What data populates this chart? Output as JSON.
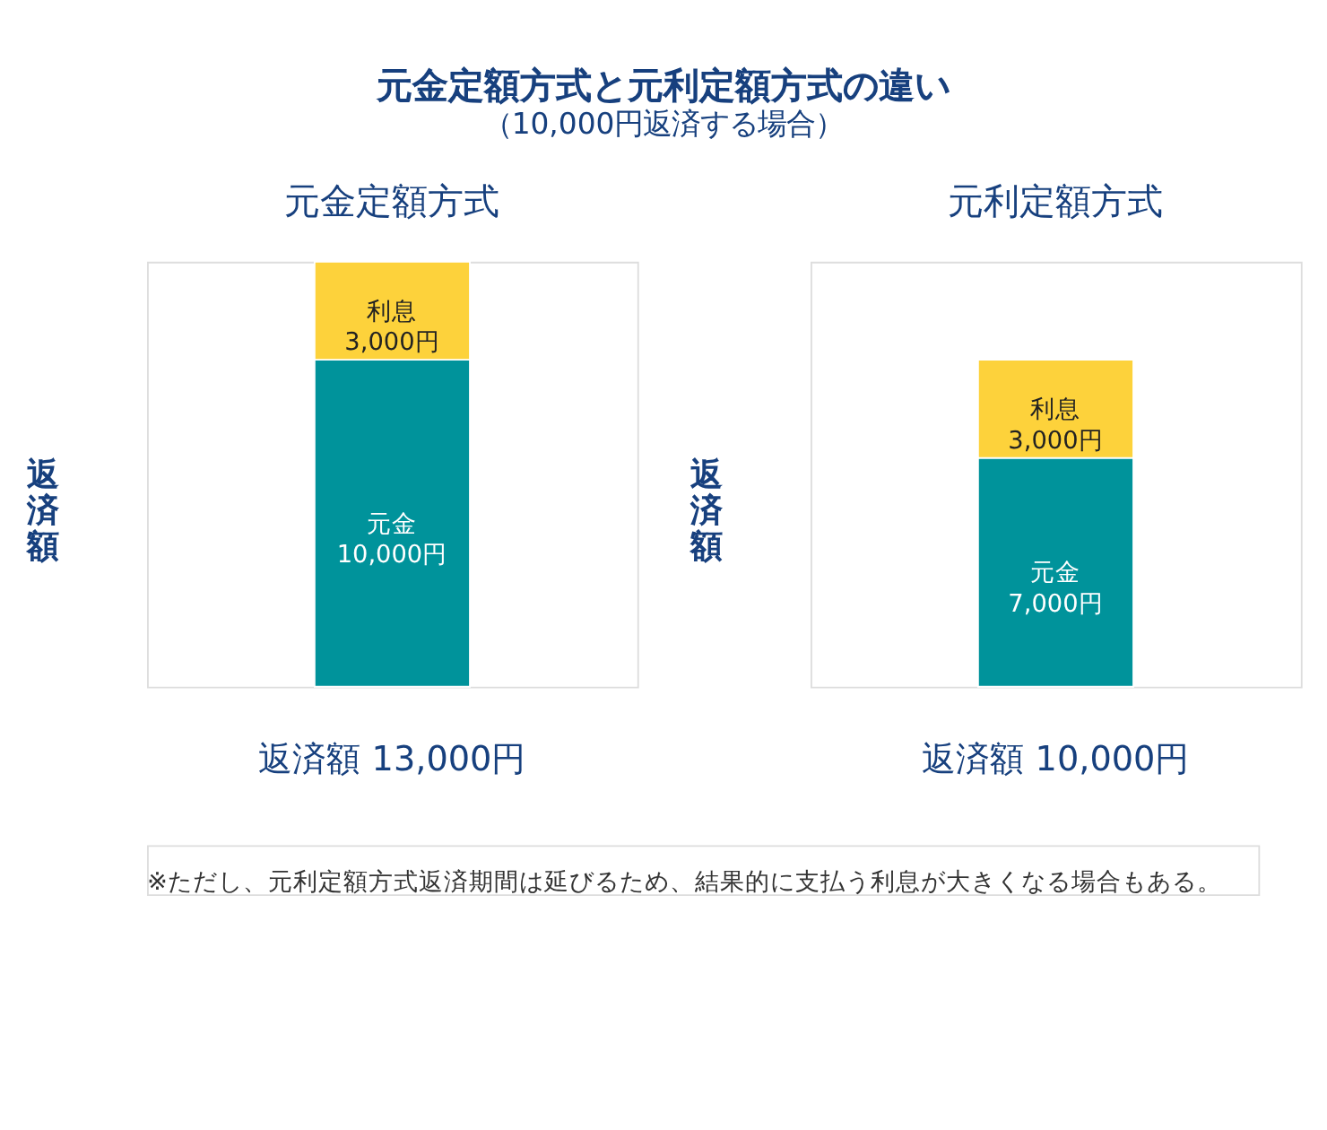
{
  "chart_data": [
    {
      "type": "bar",
      "title": "元金定額方式と元利定額方式の違い",
      "subtitle": "（10,000円返済する場合）",
      "categories": [
        "元金定額方式"
      ],
      "ylabel": "返済額",
      "stacked": true,
      "tick_labels": "x",
      "series": [
        {
          "name": "元金",
          "color": "#00939b",
          "values": [
            10000
          ],
          "value_labels": [
            "10,000円"
          ]
        },
        {
          "name": "利息",
          "color": "#fdd23b",
          "values": [
            3000
          ],
          "value_labels": [
            "3,000円"
          ]
        }
      ],
      "totals": [
        "返済額 13,000円"
      ]
    },
    {
      "type": "bar",
      "categories": [
        "元利定額方式"
      ],
      "ylabel": "返済額",
      "stacked": true,
      "tick_labels": "x",
      "series": [
        {
          "name": "元金",
          "color": "#00939b",
          "values": [
            7000
          ],
          "value_labels": [
            "7,000円"
          ]
        },
        {
          "name": "利息",
          "color": "#fdd23b",
          "values": [
            3000
          ],
          "value_labels": [
            "3,000円"
          ]
        }
      ],
      "totals": [
        "返済額 10,000円"
      ],
      "annotations": [
        "※ただし、元利定額方式返済期間は延びるため、結果的に支払う利息が大きくなる場合もある。"
      ]
    }
  ]
}
